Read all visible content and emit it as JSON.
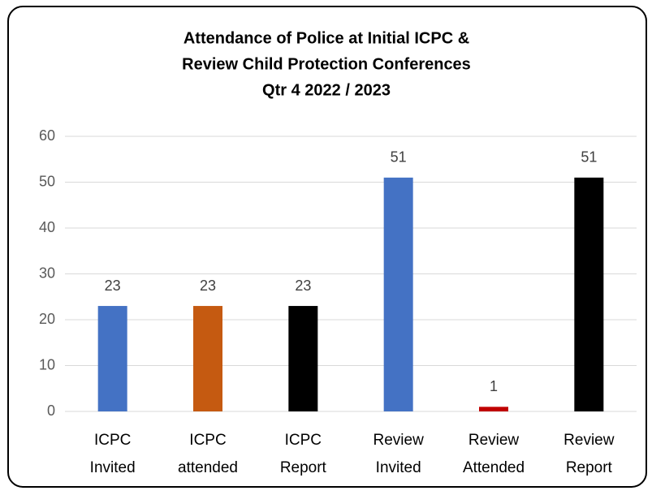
{
  "chart_data": {
    "type": "bar",
    "title": [
      "Attendance of Police at Initial ICPC &",
      "Review Child Protection Conferences",
      "Qtr 4 2022 / 2023"
    ],
    "categories": [
      "ICPC Invited",
      "ICPC attended",
      "ICPC Report",
      "Review Invited",
      "Review Attended",
      "Review Report"
    ],
    "values": [
      23,
      23,
      23,
      51,
      1,
      51
    ],
    "colors": [
      "#4472c4",
      "#c55a11",
      "#000000",
      "#4472c4",
      "#c00000",
      "#000000"
    ],
    "ylim": [
      0,
      60
    ],
    "yticks": [
      0,
      10,
      20,
      30,
      40,
      50,
      60
    ],
    "grid": true
  }
}
